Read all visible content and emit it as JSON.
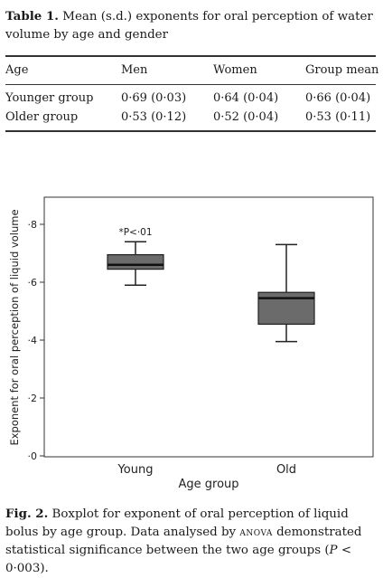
{
  "table": {
    "label": "Table 1.",
    "caption": "Mean (s.d.) exponents for oral perception of water volume by age and gender",
    "headers": [
      "Age",
      "Men",
      "Women",
      "Group mean"
    ],
    "rows": [
      [
        "Younger group",
        "0·69 (0·03)",
        "0·64 (0·04)",
        "0·66 (0·04)"
      ],
      [
        "Older group",
        "0·53 (0·12)",
        "0·52 (0·04)",
        "0·53 (0·11)"
      ]
    ]
  },
  "figure": {
    "label": "Fig. 2.",
    "caption_before": "Boxplot for exponent of oral perception of liquid bolus by age group. Data analysed by",
    "caption_anova": "ANOVA",
    "caption_after": "demonstrated statistical significance between the two age groups (",
    "caption_p": "P",
    "caption_end": " < 0·003)."
  },
  "chart_data": {
    "type": "boxplot",
    "xlabel": "Age group",
    "ylabel": "Exponent for oral perception of liquid volume",
    "ylim": [
      0,
      0.9
    ],
    "yticks": [
      0,
      0.2,
      0.4,
      0.6,
      0.8
    ],
    "ytick_labels": [
      "·0",
      "·2",
      "·4",
      "·6",
      "·8"
    ],
    "categories": [
      "Young",
      "Old"
    ],
    "boxes": [
      {
        "category": "Young",
        "min": 0.59,
        "q1": 0.645,
        "median": 0.66,
        "q3": 0.695,
        "max": 0.74
      },
      {
        "category": "Old",
        "min": 0.395,
        "q1": 0.455,
        "median": 0.545,
        "q3": 0.565,
        "max": 0.73
      }
    ],
    "annotation": {
      "category": "Young",
      "text": "*P<·01"
    },
    "box_color": "#6b6b6b"
  }
}
